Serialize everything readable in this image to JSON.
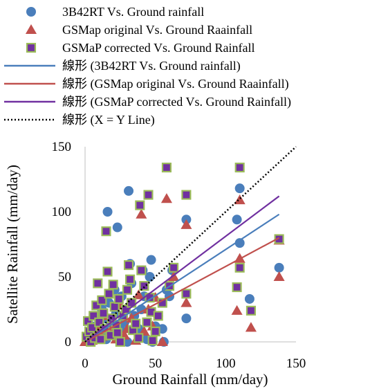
{
  "chart_data": {
    "type": "scatter",
    "xlabel": "Ground Rainfall (mm/day)",
    "ylabel": "Satellite Rainfall (mm/day)",
    "xlim": [
      0,
      150
    ],
    "ylim": [
      0,
      150
    ],
    "xticks": [
      "0",
      "50",
      "100",
      "150"
    ],
    "yticks": [
      "0",
      "50",
      "100",
      "150"
    ],
    "grid": false,
    "legend_position": "top",
    "series": [
      {
        "name": "3B42RT Vs. Ground rainfall",
        "marker": "circle",
        "color": "#4a7ebb",
        "points": [
          [
            1,
            2
          ],
          [
            2,
            5
          ],
          [
            3,
            8
          ],
          [
            4,
            1
          ],
          [
            5,
            12
          ],
          [
            6,
            3
          ],
          [
            7,
            20
          ],
          [
            8,
            6
          ],
          [
            9,
            10
          ],
          [
            10,
            15
          ],
          [
            11,
            4
          ],
          [
            12,
            25
          ],
          [
            13,
            8
          ],
          [
            14,
            18
          ],
          [
            15,
            2
          ],
          [
            16,
            100
          ],
          [
            17,
            30
          ],
          [
            18,
            12
          ],
          [
            20,
            5
          ],
          [
            21,
            40
          ],
          [
            22,
            22
          ],
          [
            23,
            88
          ],
          [
            25,
            10
          ],
          [
            26,
            35
          ],
          [
            28,
            15
          ],
          [
            30,
            0
          ],
          [
            31,
            116
          ],
          [
            32,
            60
          ],
          [
            33,
            45
          ],
          [
            35,
            20
          ],
          [
            38,
            10
          ],
          [
            40,
            25
          ],
          [
            41,
            55
          ],
          [
            42,
            35
          ],
          [
            44,
            2
          ],
          [
            46,
            50
          ],
          [
            47,
            63
          ],
          [
            48,
            0
          ],
          [
            50,
            12
          ],
          [
            52,
            20
          ],
          [
            55,
            10
          ],
          [
            56,
            0
          ],
          [
            58,
            40
          ],
          [
            60,
            35
          ],
          [
            62,
            55
          ],
          [
            72,
            94
          ],
          [
            72,
            18
          ],
          [
            108,
            94
          ],
          [
            110,
            76
          ],
          [
            110,
            118
          ],
          [
            117,
            33
          ],
          [
            138,
            57
          ]
        ]
      },
      {
        "name": "GSMap original Vs. Ground Raainfall",
        "marker": "triangle",
        "color": "#c0504d",
        "points": [
          [
            0,
            0
          ],
          [
            2,
            3
          ],
          [
            5,
            1
          ],
          [
            8,
            6
          ],
          [
            10,
            12
          ],
          [
            12,
            4
          ],
          [
            15,
            20
          ],
          [
            18,
            8
          ],
          [
            20,
            15
          ],
          [
            22,
            2
          ],
          [
            25,
            28
          ],
          [
            28,
            5
          ],
          [
            30,
            10
          ],
          [
            33,
            18
          ],
          [
            36,
            1
          ],
          [
            38,
            36
          ],
          [
            40,
            98
          ],
          [
            42,
            8
          ],
          [
            45,
            25
          ],
          [
            48,
            12
          ],
          [
            50,
            34
          ],
          [
            55,
            0
          ],
          [
            58,
            110
          ],
          [
            63,
            50
          ],
          [
            72,
            90
          ],
          [
            72,
            30
          ],
          [
            108,
            24
          ],
          [
            110,
            109
          ],
          [
            110,
            64
          ],
          [
            118,
            11
          ],
          [
            138,
            50
          ],
          [
            138,
            78
          ]
        ]
      },
      {
        "name": "GSMaP corrected Vs. Ground Rainfall",
        "marker": "square",
        "color": "#7030a0",
        "points": [
          [
            1,
            4
          ],
          [
            2,
            16
          ],
          [
            3,
            8
          ],
          [
            4,
            0
          ],
          [
            5,
            11
          ],
          [
            6,
            20
          ],
          [
            7,
            3
          ],
          [
            8,
            28
          ],
          [
            9,
            45
          ],
          [
            10,
            15
          ],
          [
            11,
            2
          ],
          [
            12,
            32
          ],
          [
            13,
            22
          ],
          [
            14,
            10
          ],
          [
            15,
            85
          ],
          [
            16,
            54
          ],
          [
            17,
            37
          ],
          [
            18,
            5
          ],
          [
            19,
            18
          ],
          [
            20,
            44
          ],
          [
            21,
            27
          ],
          [
            22,
            13
          ],
          [
            23,
            7
          ],
          [
            24,
            33
          ],
          [
            25,
            0
          ],
          [
            27,
            20
          ],
          [
            29,
            25
          ],
          [
            30,
            40
          ],
          [
            31,
            59
          ],
          [
            32,
            48
          ],
          [
            33,
            30
          ],
          [
            34,
            9
          ],
          [
            36,
            14
          ],
          [
            38,
            3
          ],
          [
            39,
            105
          ],
          [
            40,
            55
          ],
          [
            42,
            43
          ],
          [
            44,
            15
          ],
          [
            45,
            113
          ],
          [
            46,
            34
          ],
          [
            47,
            23
          ],
          [
            48,
            1
          ],
          [
            50,
            8
          ],
          [
            52,
            20
          ],
          [
            55,
            30
          ],
          [
            58,
            134
          ],
          [
            60,
            43
          ],
          [
            63,
            57
          ],
          [
            72,
            113
          ],
          [
            72,
            37
          ],
          [
            108,
            42
          ],
          [
            110,
            134
          ],
          [
            110,
            57
          ],
          [
            118,
            24
          ],
          [
            138,
            79
          ]
        ]
      }
    ],
    "lines": [
      {
        "name": "線形 (3B42RT Vs. Ground rainfall)",
        "color": "#4a7ebb",
        "style": "solid",
        "x": [
          0,
          138
        ],
        "y": [
          0,
          98
        ]
      },
      {
        "name": "線形 (GSMap original Vs. Ground Raainfall)",
        "color": "#c0504d",
        "style": "solid",
        "x": [
          0,
          138
        ],
        "y": [
          0,
          80
        ]
      },
      {
        "name": "線形 (GSMaP corrected Vs. Ground Rainfall)",
        "color": "#7030a0",
        "style": "solid",
        "x": [
          0,
          138
        ],
        "y": [
          0,
          112
        ]
      },
      {
        "name": "線形 (X = Y Line)",
        "color": "#000000",
        "style": "dotted",
        "x": [
          0,
          150
        ],
        "y": [
          0,
          150
        ]
      }
    ]
  }
}
